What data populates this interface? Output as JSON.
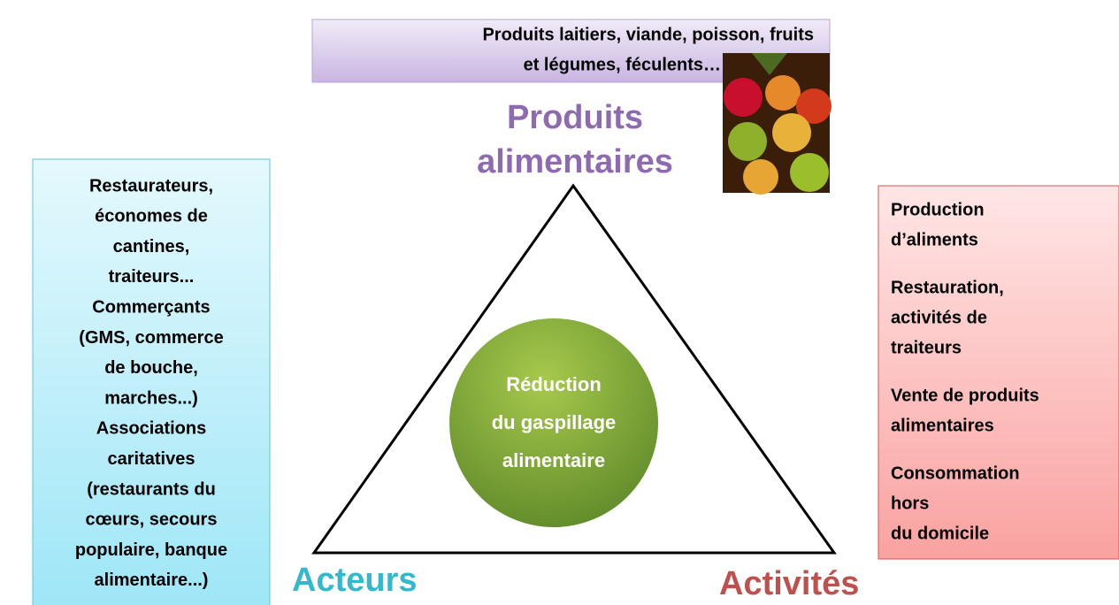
{
  "top_box": {
    "lines": [
      "Produits laitiers, viande, poisson, fruits",
      "et légumes, féculents…"
    ]
  },
  "top_label": {
    "lines": [
      "Produits",
      "alimentaires"
    ]
  },
  "left_box": {
    "lines": [
      "Restaurateurs,",
      "économes de",
      "cantines,",
      "traiteurs...",
      "Commerçants",
      "(GMS, commerce",
      "de bouche,",
      "marches...)",
      "Associations",
      "caritatives",
      "(restaurants du",
      "cœurs, secours",
      "populaire, banque",
      "alimentaire...)"
    ]
  },
  "center": {
    "lines": [
      "Réduction",
      "du gaspillage",
      "alimentaire"
    ]
  },
  "bottom_left": "Acteurs",
  "bottom_right": "Activités",
  "right_box": {
    "items": [
      {
        "lines": [
          "Production",
          "d’aliments"
        ]
      },
      {
        "lines": [
          "Restauration,",
          "activités de",
          "traiteurs"
        ]
      },
      {
        "lines": [
          "Vente de produits",
          "alimentaires"
        ]
      },
      {
        "lines": [
          "Consommation",
          "hors",
          "du domicile"
        ]
      }
    ]
  }
}
